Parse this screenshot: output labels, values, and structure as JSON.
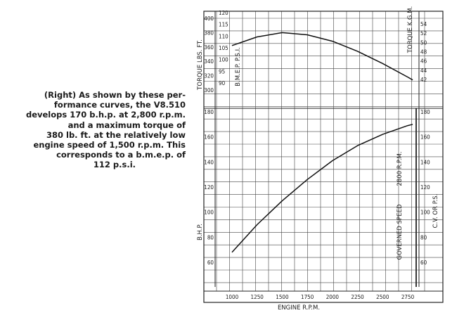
{
  "caption": {
    "lines": [
      "(Right) As shown by these per-",
      "formance curves, the V8.510",
      "develops 170 b.h.p. at 2,800 r.p.m.",
      "and a maximum torque of",
      "380 lb. ft. at the relatively low",
      "engine speed of 1,500 r.p.m. This",
      "corresponds to a b.m.e.p. of",
      "112 p.s.i."
    ]
  },
  "chart_data": [
    {
      "type": "line",
      "name": "torque",
      "xlabel": "ENGINE R.P.M.",
      "x_ticks": [
        "1000",
        "1250",
        "1500",
        "1750",
        "2000",
        "2250",
        "2500",
        "2750"
      ],
      "xlim": [
        1000,
        2800
      ],
      "ylabel_left": "TORQUE LBS. FT.",
      "ylabel_left2": "B.M.E.P. P.S.I.",
      "ylabel_right": "TORQUE K.G.M.",
      "y_ticks_lbft": [
        "300",
        "320",
        "340",
        "360",
        "380",
        "400"
      ],
      "y_ticks_psi": [
        "90",
        "95",
        "100",
        "105",
        "110",
        "115",
        "120"
      ],
      "y_ticks_kgm": [
        "42",
        "44",
        "46",
        "48",
        "50",
        "52",
        "54"
      ],
      "ylim_lbft": [
        300,
        410
      ],
      "series": [
        {
          "x": [
            1000,
            1250,
            1500,
            1750,
            2000,
            2250,
            2500,
            2750,
            2800
          ],
          "y": [
            362,
            374,
            380,
            377,
            368,
            354,
            337,
            318,
            314
          ]
        }
      ]
    },
    {
      "type": "line",
      "name": "power",
      "xlabel": "ENGINE R.P.M.",
      "ylabel_left": "B.H.P.",
      "ylabel_right": "C.V. OR P.S.",
      "y_ticks_bhp": [
        "60",
        "80",
        "100",
        "120",
        "140",
        "160",
        "180"
      ],
      "y_ticks_cv": [
        "60",
        "80",
        "100",
        "120",
        "140",
        "160",
        "180"
      ],
      "ylim_bhp": [
        50,
        180
      ],
      "governed_label": "GOVERNED SPEED",
      "governed_rpm_label": "2800 R.P.M.",
      "governed_rpm": 2800,
      "series": [
        {
          "x": [
            1000,
            1250,
            1500,
            1750,
            2000,
            2250,
            2500,
            2750,
            2800
          ],
          "y": [
            68,
            90,
            109,
            126,
            141,
            153,
            162,
            169,
            170
          ]
        }
      ]
    }
  ]
}
